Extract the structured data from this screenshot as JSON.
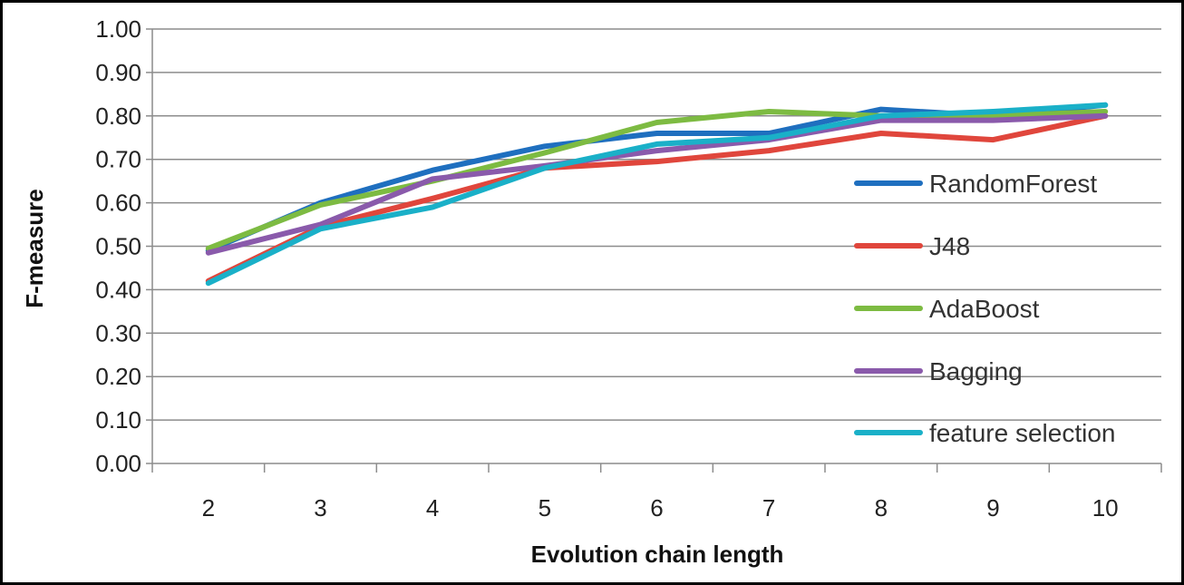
{
  "chart_data": {
    "type": "line",
    "title": "",
    "xlabel": "Evolution chain length",
    "ylabel": "F-measure",
    "x": [
      2,
      3,
      4,
      5,
      6,
      7,
      8,
      9,
      10
    ],
    "ylim": [
      0,
      1
    ],
    "yticks": [
      "0.00",
      "0.10",
      "0.20",
      "0.30",
      "0.40",
      "0.50",
      "0.60",
      "0.70",
      "0.80",
      "0.90",
      "1.00"
    ],
    "xticks": [
      "2",
      "3",
      "4",
      "5",
      "6",
      "7",
      "8",
      "9",
      "10"
    ],
    "grid": true,
    "legend_position": "right",
    "series": [
      {
        "name": "RandomForest",
        "color": "#1f6fbf",
        "values": [
          0.49,
          0.6,
          0.675,
          0.73,
          0.76,
          0.76,
          0.815,
          0.8,
          0.825
        ]
      },
      {
        "name": "J48",
        "color": "#e0463c",
        "values": [
          0.42,
          0.545,
          0.61,
          0.68,
          0.695,
          0.72,
          0.76,
          0.745,
          0.8
        ]
      },
      {
        "name": "AdaBoost",
        "color": "#7dbb42",
        "values": [
          0.495,
          0.595,
          0.65,
          0.715,
          0.785,
          0.81,
          0.8,
          0.8,
          0.81
        ]
      },
      {
        "name": "Bagging",
        "color": "#8a5aab",
        "values": [
          0.485,
          0.55,
          0.655,
          0.685,
          0.72,
          0.745,
          0.79,
          0.79,
          0.8
        ]
      },
      {
        "name": "feature selection",
        "color": "#1ab0c8",
        "values": [
          0.415,
          0.54,
          0.59,
          0.68,
          0.735,
          0.75,
          0.8,
          0.81,
          0.825
        ]
      }
    ]
  }
}
